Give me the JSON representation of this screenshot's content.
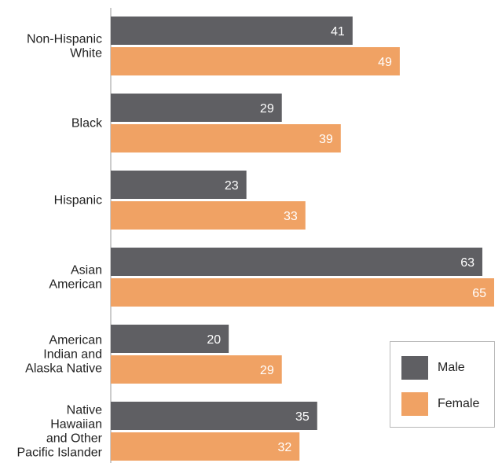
{
  "chart_data": {
    "type": "bar",
    "orientation": "horizontal",
    "categories": [
      [
        "Non-Hispanic",
        "White"
      ],
      [
        "Black"
      ],
      [
        "Hispanic"
      ],
      [
        "Asian",
        "American"
      ],
      [
        "American",
        "Indian and",
        "Alaska Native"
      ],
      [
        "Native",
        "Hawaiian",
        "and Other",
        "Pacific Islander"
      ]
    ],
    "series": [
      {
        "name": "Male",
        "color": "#5f5f63",
        "values": [
          41,
          29,
          23,
          63,
          20,
          35
        ]
      },
      {
        "name": "Female",
        "color": "#f0a264",
        "values": [
          49,
          39,
          33,
          65,
          29,
          32
        ]
      }
    ],
    "xlim": [
      0,
      65
    ],
    "grid": false,
    "legend_position": "bottom-right"
  },
  "legend": {
    "male_label": "Male",
    "female_label": "Female",
    "male_color": "#5f5f63",
    "female_color": "#f0a264"
  }
}
